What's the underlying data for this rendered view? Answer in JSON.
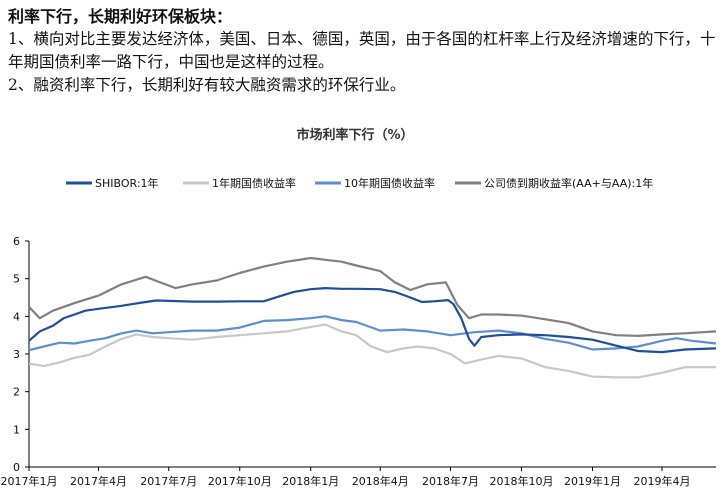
{
  "text": {
    "headline": "利率下行，长期利好环保板块：",
    "point1": "1、横向对比主要发达经济体，美国、日本、德国，英国，由于各国的杠杆率上行及经济增速的下行，十年期国债利率一路下行，中国也是这样的过程。",
    "point2": "2、融资利率下行，长期利好有较大融资需求的环保行业。"
  },
  "chart_data": {
    "type": "line",
    "title": "市场利率下行（%）",
    "xlabel": "",
    "ylabel": "",
    "ylim": [
      0,
      6
    ],
    "yticks": [
      0,
      1,
      2,
      3,
      4,
      5,
      6
    ],
    "xlim": [
      "2017-01-01",
      "2019-06-10"
    ],
    "xticks": [
      "2017-01-01",
      "2017-04-01",
      "2017-07-01",
      "2017-10-01",
      "2018-01-01",
      "2018-04-01",
      "2018-07-01",
      "2018-10-01",
      "2019-01-01",
      "2019-04-01"
    ],
    "xtick_labels": [
      "2017年1月",
      "2017年4月",
      "2017年7月",
      "2017年10月",
      "2018年1月",
      "2018年4月",
      "2018年7月",
      "2018年10月",
      "2019年1月",
      "2019年4月"
    ],
    "grid": false,
    "legend_position": "top",
    "series": [
      {
        "name": "SHIBOR:1年",
        "color": "#1f4e9a",
        "points": [
          [
            "2017-01-01",
            3.35
          ],
          [
            "2017-01-15",
            3.6
          ],
          [
            "2017-02-01",
            3.75
          ],
          [
            "2017-02-15",
            3.95
          ],
          [
            "2017-03-01",
            4.05
          ],
          [
            "2017-03-15",
            4.15
          ],
          [
            "2017-04-01",
            4.2
          ],
          [
            "2017-05-01",
            4.28
          ],
          [
            "2017-06-01",
            4.38
          ],
          [
            "2017-06-15",
            4.42
          ],
          [
            "2017-07-01",
            4.41
          ],
          [
            "2017-08-01",
            4.39
          ],
          [
            "2017-09-01",
            4.39
          ],
          [
            "2017-10-01",
            4.4
          ],
          [
            "2017-11-01",
            4.4
          ],
          [
            "2017-11-20",
            4.52
          ],
          [
            "2017-12-10",
            4.65
          ],
          [
            "2018-01-01",
            4.72
          ],
          [
            "2018-01-20",
            4.75
          ],
          [
            "2018-02-10",
            4.73
          ],
          [
            "2018-03-01",
            4.73
          ],
          [
            "2018-04-01",
            4.72
          ],
          [
            "2018-04-20",
            4.65
          ],
          [
            "2018-05-10",
            4.5
          ],
          [
            "2018-05-25",
            4.38
          ],
          [
            "2018-06-10",
            4.4
          ],
          [
            "2018-06-28",
            4.43
          ],
          [
            "2018-07-05",
            4.32
          ],
          [
            "2018-07-15",
            3.95
          ],
          [
            "2018-07-25",
            3.4
          ],
          [
            "2018-08-01",
            3.22
          ],
          [
            "2018-08-10",
            3.45
          ],
          [
            "2018-09-01",
            3.5
          ],
          [
            "2018-10-01",
            3.52
          ],
          [
            "2018-11-01",
            3.5
          ],
          [
            "2018-12-01",
            3.45
          ],
          [
            "2019-01-01",
            3.38
          ],
          [
            "2019-02-01",
            3.22
          ],
          [
            "2019-03-01",
            3.08
          ],
          [
            "2019-04-01",
            3.05
          ],
          [
            "2019-05-01",
            3.12
          ],
          [
            "2019-06-10",
            3.15
          ]
        ]
      },
      {
        "name": "1年期国债收益率",
        "color": "#c8c8c8",
        "points": [
          [
            "2017-01-01",
            2.75
          ],
          [
            "2017-01-20",
            2.68
          ],
          [
            "2017-02-10",
            2.78
          ],
          [
            "2017-03-01",
            2.9
          ],
          [
            "2017-03-20",
            2.98
          ],
          [
            "2017-04-10",
            3.2
          ],
          [
            "2017-05-01",
            3.4
          ],
          [
            "2017-05-20",
            3.52
          ],
          [
            "2017-06-10",
            3.45
          ],
          [
            "2017-07-01",
            3.42
          ],
          [
            "2017-08-01",
            3.38
          ],
          [
            "2017-09-01",
            3.45
          ],
          [
            "2017-10-01",
            3.5
          ],
          [
            "2017-11-01",
            3.55
          ],
          [
            "2017-12-01",
            3.6
          ],
          [
            "2018-01-01",
            3.72
          ],
          [
            "2018-01-20",
            3.78
          ],
          [
            "2018-02-10",
            3.6
          ],
          [
            "2018-03-01",
            3.5
          ],
          [
            "2018-03-20",
            3.2
          ],
          [
            "2018-04-10",
            3.05
          ],
          [
            "2018-05-01",
            3.15
          ],
          [
            "2018-05-20",
            3.2
          ],
          [
            "2018-06-10",
            3.15
          ],
          [
            "2018-07-01",
            3.0
          ],
          [
            "2018-07-20",
            2.75
          ],
          [
            "2018-08-10",
            2.85
          ],
          [
            "2018-09-01",
            2.95
          ],
          [
            "2018-10-01",
            2.88
          ],
          [
            "2018-11-01",
            2.65
          ],
          [
            "2018-12-01",
            2.55
          ],
          [
            "2019-01-01",
            2.4
          ],
          [
            "2019-02-01",
            2.38
          ],
          [
            "2019-03-01",
            2.38
          ],
          [
            "2019-04-01",
            2.5
          ],
          [
            "2019-05-01",
            2.65
          ],
          [
            "2019-06-10",
            2.65
          ]
        ]
      },
      {
        "name": "10年期国债收益率",
        "color": "#5b8fd0",
        "points": [
          [
            "2017-01-01",
            3.1
          ],
          [
            "2017-01-20",
            3.2
          ],
          [
            "2017-02-10",
            3.3
          ],
          [
            "2017-03-01",
            3.28
          ],
          [
            "2017-03-20",
            3.35
          ],
          [
            "2017-04-10",
            3.42
          ],
          [
            "2017-05-01",
            3.55
          ],
          [
            "2017-05-20",
            3.62
          ],
          [
            "2017-06-10",
            3.55
          ],
          [
            "2017-07-01",
            3.58
          ],
          [
            "2017-08-01",
            3.62
          ],
          [
            "2017-09-01",
            3.62
          ],
          [
            "2017-10-01",
            3.7
          ],
          [
            "2017-11-01",
            3.88
          ],
          [
            "2017-12-01",
            3.9
          ],
          [
            "2018-01-01",
            3.95
          ],
          [
            "2018-01-20",
            4.0
          ],
          [
            "2018-02-10",
            3.9
          ],
          [
            "2018-03-01",
            3.85
          ],
          [
            "2018-04-01",
            3.62
          ],
          [
            "2018-05-01",
            3.65
          ],
          [
            "2018-06-01",
            3.6
          ],
          [
            "2018-07-01",
            3.5
          ],
          [
            "2018-08-01",
            3.58
          ],
          [
            "2018-09-01",
            3.62
          ],
          [
            "2018-10-01",
            3.55
          ],
          [
            "2018-11-01",
            3.4
          ],
          [
            "2018-12-01",
            3.3
          ],
          [
            "2019-01-01",
            3.12
          ],
          [
            "2019-02-01",
            3.15
          ],
          [
            "2019-03-01",
            3.2
          ],
          [
            "2019-04-01",
            3.35
          ],
          [
            "2019-04-20",
            3.42
          ],
          [
            "2019-05-10",
            3.35
          ],
          [
            "2019-06-10",
            3.28
          ]
        ]
      },
      {
        "name": "公司债到期收益率(AA+与AA):1年",
        "color": "#808080",
        "points": [
          [
            "2017-01-01",
            4.25
          ],
          [
            "2017-01-15",
            3.95
          ],
          [
            "2017-02-01",
            4.15
          ],
          [
            "2017-03-01",
            4.35
          ],
          [
            "2017-04-01",
            4.55
          ],
          [
            "2017-05-01",
            4.85
          ],
          [
            "2017-06-01",
            5.05
          ],
          [
            "2017-06-20",
            4.9
          ],
          [
            "2017-07-10",
            4.75
          ],
          [
            "2017-08-01",
            4.85
          ],
          [
            "2017-09-01",
            4.95
          ],
          [
            "2017-10-01",
            5.15
          ],
          [
            "2017-11-01",
            5.32
          ],
          [
            "2017-12-01",
            5.45
          ],
          [
            "2018-01-01",
            5.55
          ],
          [
            "2018-01-20",
            5.5
          ],
          [
            "2018-02-10",
            5.45
          ],
          [
            "2018-03-01",
            5.35
          ],
          [
            "2018-04-01",
            5.2
          ],
          [
            "2018-04-20",
            4.9
          ],
          [
            "2018-05-10",
            4.7
          ],
          [
            "2018-06-01",
            4.85
          ],
          [
            "2018-06-25",
            4.9
          ],
          [
            "2018-07-10",
            4.3
          ],
          [
            "2018-07-25",
            3.95
          ],
          [
            "2018-08-10",
            4.05
          ],
          [
            "2018-09-01",
            4.05
          ],
          [
            "2018-10-01",
            4.02
          ],
          [
            "2018-11-01",
            3.92
          ],
          [
            "2018-12-01",
            3.82
          ],
          [
            "2019-01-01",
            3.6
          ],
          [
            "2019-02-01",
            3.5
          ],
          [
            "2019-03-01",
            3.48
          ],
          [
            "2019-04-01",
            3.52
          ],
          [
            "2019-05-01",
            3.55
          ],
          [
            "2019-06-10",
            3.6
          ]
        ]
      }
    ]
  }
}
